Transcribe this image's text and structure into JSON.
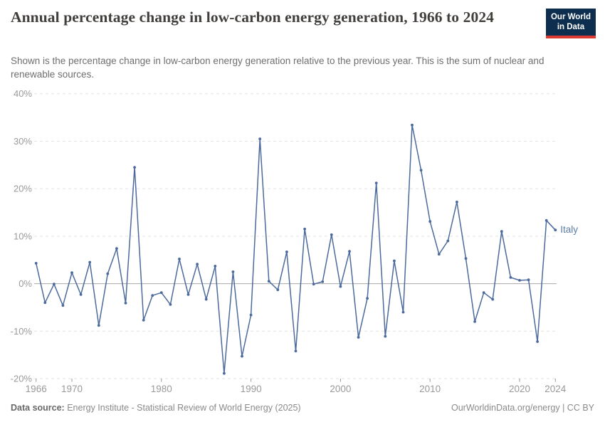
{
  "header": {
    "title": "Annual percentage change in low-carbon energy generation, 1966 to 2024",
    "subtitle": "Shown is the percentage change in low-carbon energy generation relative to the previous year. This is the sum of nuclear and renewable sources.",
    "logo": {
      "line1": "Our World",
      "line2": "in Data",
      "bg_color": "#0d2e4e",
      "accent_color": "#dc3a33"
    }
  },
  "chart_data": {
    "type": "line",
    "title": "Annual percentage change in low-carbon energy generation, 1966 to 2024",
    "xlabel": "",
    "ylabel": "",
    "xlim": [
      1966,
      2024
    ],
    "ylim": [
      -20,
      40
    ],
    "grid": "horizontal dashed gridlines, solid zero line",
    "legend_position": "entity label at line end",
    "x_ticks": [
      1966,
      1970,
      1980,
      1990,
      2000,
      2010,
      2020,
      2024
    ],
    "y_ticks": [
      {
        "value": 40,
        "label": "40%"
      },
      {
        "value": 30,
        "label": "30%"
      },
      {
        "value": 20,
        "label": "20%"
      },
      {
        "value": 10,
        "label": "10%"
      },
      {
        "value": 0,
        "label": "0%"
      },
      {
        "value": -10,
        "label": "-10%"
      },
      {
        "value": -20,
        "label": "-20%"
      }
    ],
    "series": [
      {
        "name": "Italy",
        "color": "#4c6a9c",
        "label_color": "#5d7ca8",
        "x": [
          1966,
          1967,
          1968,
          1969,
          1970,
          1971,
          1972,
          1973,
          1974,
          1975,
          1976,
          1977,
          1978,
          1979,
          1980,
          1981,
          1982,
          1983,
          1984,
          1985,
          1986,
          1987,
          1988,
          1989,
          1990,
          1991,
          1992,
          1993,
          1994,
          1995,
          1996,
          1997,
          1998,
          1999,
          2000,
          2001,
          2002,
          2003,
          2004,
          2005,
          2006,
          2007,
          2008,
          2009,
          2010,
          2011,
          2012,
          2013,
          2014,
          2015,
          2016,
          2017,
          2018,
          2019,
          2020,
          2021,
          2022,
          2023,
          2024
        ],
        "values": [
          4.3,
          -4.0,
          -0.1,
          -4.6,
          2.3,
          -2.3,
          4.5,
          -8.8,
          2.1,
          7.4,
          -4.1,
          24.5,
          -7.7,
          -2.5,
          -1.9,
          -4.4,
          5.2,
          -2.3,
          4.1,
          -3.3,
          3.7,
          -18.9,
          2.5,
          -15.3,
          -6.6,
          30.5,
          0.5,
          -1.3,
          6.7,
          -14.2,
          11.5,
          -0.1,
          0.4,
          10.3,
          -0.6,
          6.8,
          -11.3,
          -3.1,
          21.2,
          -11.1,
          4.8,
          -6.0,
          33.4,
          23.9,
          13.1,
          6.2,
          9.0,
          17.2,
          5.3,
          -8.0,
          -1.9,
          -3.3,
          11.0,
          1.3,
          0.7,
          0.8,
          -12.2,
          13.3,
          11.3
        ]
      }
    ],
    "colors": {
      "gridline": "#e2e2e2",
      "zero_line": "#a8a8a8",
      "tick_text": "#9a9a9a",
      "tick_mark": "#999999"
    }
  },
  "footer": {
    "datasource_label": "Data source:",
    "datasource_value": " Energy Institute - Statistical Review of World Energy (2025)",
    "license": "OurWorldinData.org/energy | CC BY"
  }
}
